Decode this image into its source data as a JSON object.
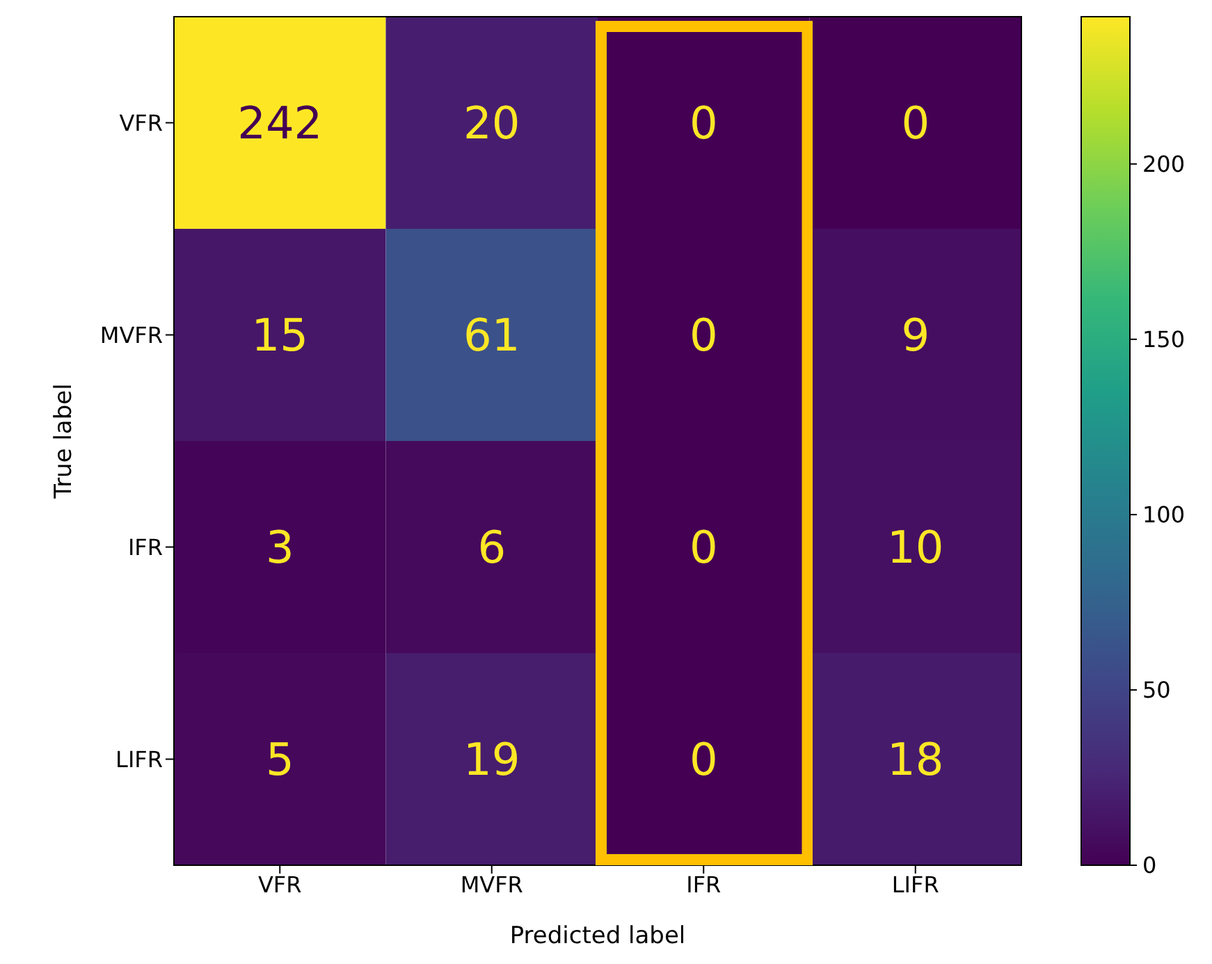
{
  "chart_data": {
    "type": "heatmap",
    "xlabel": "Predicted label",
    "ylabel": "True label",
    "categories": [
      "VFR",
      "MVFR",
      "IFR",
      "LIFR"
    ],
    "y_categories": [
      "VFR",
      "MVFR",
      "IFR",
      "LIFR"
    ],
    "cells": [
      [
        242,
        20,
        0,
        0
      ],
      [
        15,
        61,
        0,
        9
      ],
      [
        3,
        6,
        0,
        10
      ],
      [
        5,
        19,
        0,
        18
      ]
    ],
    "clim": [
      0,
      242
    ],
    "cticks": [
      0,
      50,
      100,
      150,
      200
    ],
    "data_labels": true
  }
}
